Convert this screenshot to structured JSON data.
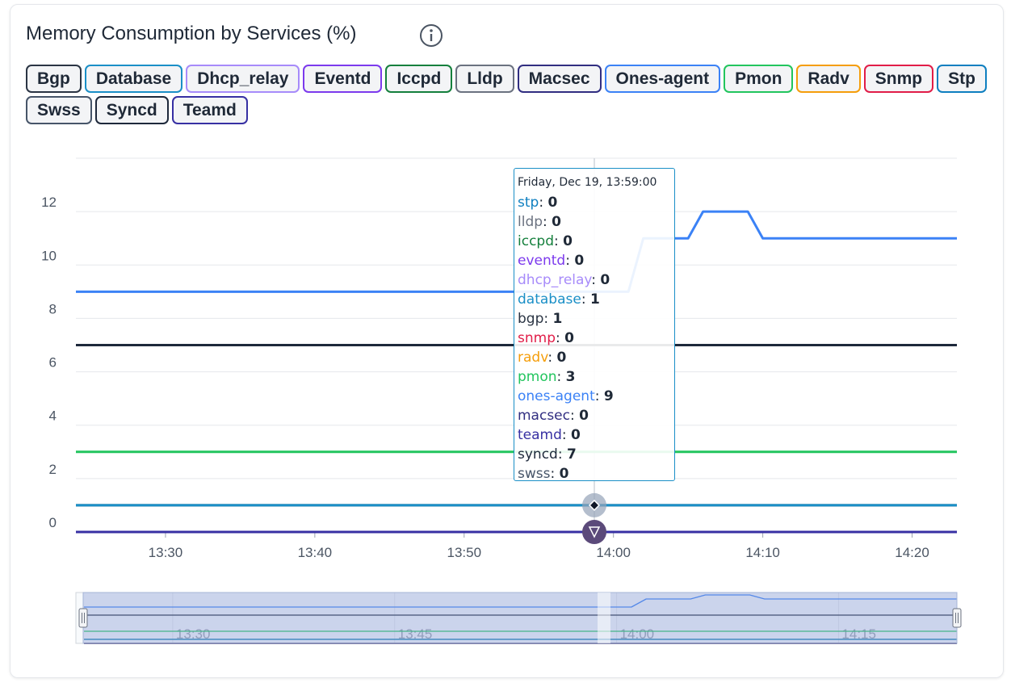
{
  "chart_data": {
    "type": "line",
    "title": "Memory Consumption by Services (%)",
    "x": [
      "13:24",
      "13:59",
      "14:01",
      "14:02",
      "14:05",
      "14:06",
      "14:09",
      "14:10",
      "14:23"
    ],
    "xlim": [
      "13:24",
      "14:23"
    ],
    "xticks": [
      "13:30",
      "13:40",
      "13:50",
      "14:00",
      "14:10",
      "14:20"
    ],
    "ylim": [
      0,
      14
    ],
    "yticks": [
      0,
      2,
      4,
      6,
      8,
      10,
      12
    ],
    "grid": true,
    "series": [
      {
        "name": "Bgp",
        "color": "#2b3544",
        "values": [
          1,
          1,
          1,
          1,
          1,
          1,
          1,
          1,
          1
        ]
      },
      {
        "name": "Database",
        "color": "#1a8fc7",
        "values": [
          1,
          1,
          1,
          1,
          1,
          1,
          1,
          1,
          1
        ]
      },
      {
        "name": "Dhcp_relay",
        "color": "#a78bfa",
        "values": [
          0,
          0,
          0,
          0,
          0,
          0,
          0,
          0,
          0
        ]
      },
      {
        "name": "Eventd",
        "color": "#7c3aed",
        "values": [
          0,
          0,
          0,
          0,
          0,
          0,
          0,
          0,
          0
        ]
      },
      {
        "name": "Iccpd",
        "color": "#15803d",
        "values": [
          0,
          0,
          0,
          0,
          0,
          0,
          0,
          0,
          0
        ]
      },
      {
        "name": "Lldp",
        "color": "#6b7280",
        "values": [
          0,
          0,
          0,
          0,
          0,
          0,
          0,
          0,
          0
        ]
      },
      {
        "name": "Macsec",
        "color": "#312e81",
        "values": [
          0,
          0,
          0,
          0,
          0,
          0,
          0,
          0,
          0
        ]
      },
      {
        "name": "Ones-agent",
        "color": "#3b82f6",
        "values": [
          9,
          9,
          9,
          11,
          11,
          12,
          12,
          11,
          11
        ]
      },
      {
        "name": "Pmon",
        "color": "#22c55e",
        "values": [
          3,
          3,
          3,
          3,
          3,
          3,
          3,
          3,
          3
        ]
      },
      {
        "name": "Radv",
        "color": "#f59e0b",
        "values": [
          0,
          0,
          0,
          0,
          0,
          0,
          0,
          0,
          0
        ]
      },
      {
        "name": "Snmp",
        "color": "#e11d48",
        "values": [
          0,
          0,
          0,
          0,
          0,
          0,
          0,
          0,
          0
        ]
      },
      {
        "name": "Stp",
        "color": "#0e7fc0",
        "values": [
          0,
          0,
          0,
          0,
          0,
          0,
          0,
          0,
          0
        ]
      },
      {
        "name": "Swss",
        "color": "#475569",
        "values": [
          0,
          0,
          0,
          0,
          0,
          0,
          0,
          0,
          0
        ]
      },
      {
        "name": "Syncd",
        "color": "#1e293b",
        "values": [
          7,
          7,
          7,
          7,
          7,
          7,
          7,
          7,
          7
        ]
      },
      {
        "name": "Teamd",
        "color": "#3730a3",
        "values": [
          0,
          0,
          0,
          0,
          0,
          0,
          0,
          0,
          0
        ]
      }
    ],
    "tooltip": {
      "title": "Friday, Dec 19, 13:59:00",
      "items": [
        {
          "name": "stp",
          "color": "#0e7fc0",
          "value": 0
        },
        {
          "name": "lldp",
          "color": "#6b7280",
          "value": 0
        },
        {
          "name": "iccpd",
          "color": "#15803d",
          "value": 0
        },
        {
          "name": "eventd",
          "color": "#7c3aed",
          "value": 0
        },
        {
          "name": "dhcp_relay",
          "color": "#a78bfa",
          "value": 0
        },
        {
          "name": "database",
          "color": "#1a8fc7",
          "value": 1
        },
        {
          "name": "bgp",
          "color": "#2b3544",
          "value": 1
        },
        {
          "name": "snmp",
          "color": "#e11d48",
          "value": 0
        },
        {
          "name": "radv",
          "color": "#f59e0b",
          "value": 0
        },
        {
          "name": "pmon",
          "color": "#22c55e",
          "value": 3
        },
        {
          "name": "ones-agent",
          "color": "#3b82f6",
          "value": 9
        },
        {
          "name": "macsec",
          "color": "#312e81",
          "value": 0
        },
        {
          "name": "teamd",
          "color": "#3730a3",
          "value": 0
        },
        {
          "name": "syncd",
          "color": "#1e293b",
          "value": 7
        },
        {
          "name": "swss",
          "color": "#475569",
          "value": 0
        }
      ]
    },
    "zoom": {
      "xticks": [
        "13:30",
        "13:45",
        "14:00",
        "14:15"
      ]
    }
  }
}
